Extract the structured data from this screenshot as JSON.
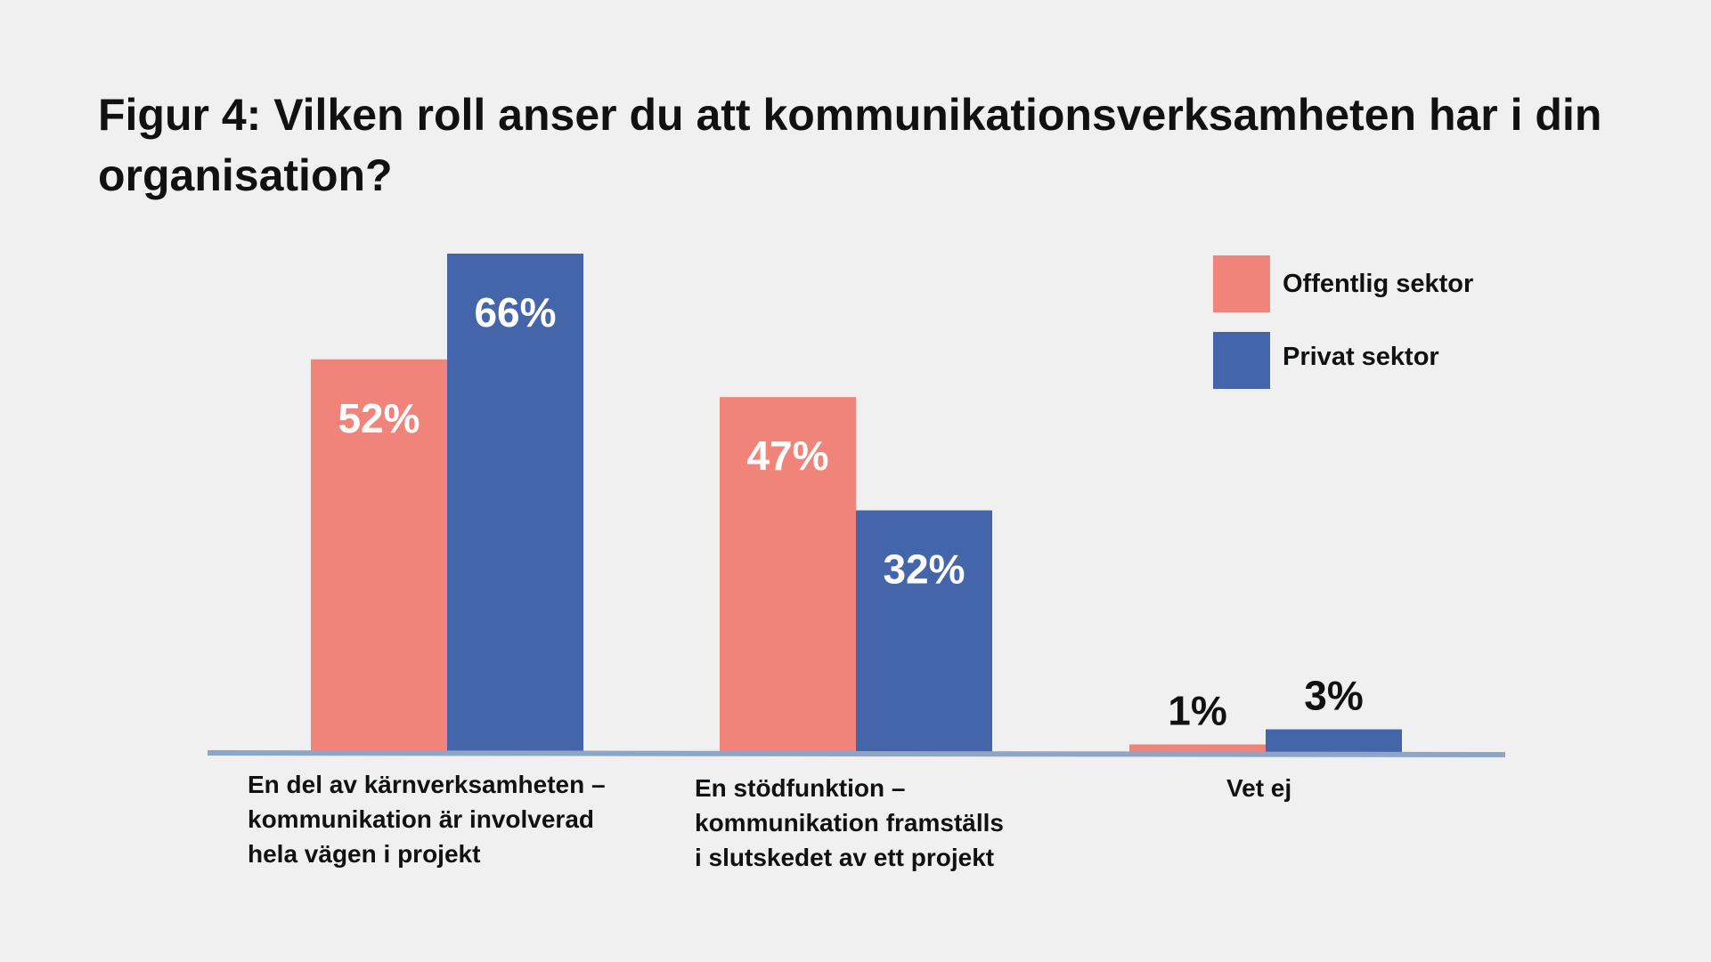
{
  "chart_data": {
    "type": "bar",
    "title": "Figur 4: Vilken roll anser du att kommunikationsverksamheten har i din organisation?",
    "categories": [
      "En del av kärnverksamheten –\nkommunikation är involverad\nhela vägen i projekt",
      "En stödfunktion –\nkommunikation framställs\ni slutskedet av ett projekt",
      "Vet ej"
    ],
    "series": [
      {
        "name": "Offentlig sektor",
        "values": [
          52,
          47,
          1
        ],
        "labels": [
          "52%",
          "47%",
          "1%"
        ],
        "color": "#f0837a"
      },
      {
        "name": "Privat sektor",
        "values": [
          66,
          32,
          3
        ],
        "labels": [
          "66%",
          "32%",
          "3%"
        ],
        "color": "#4565ab"
      }
    ],
    "ylim": [
      0,
      66
    ],
    "grid": false,
    "legend": "top-right",
    "axis_color": "#8fa5c8"
  }
}
